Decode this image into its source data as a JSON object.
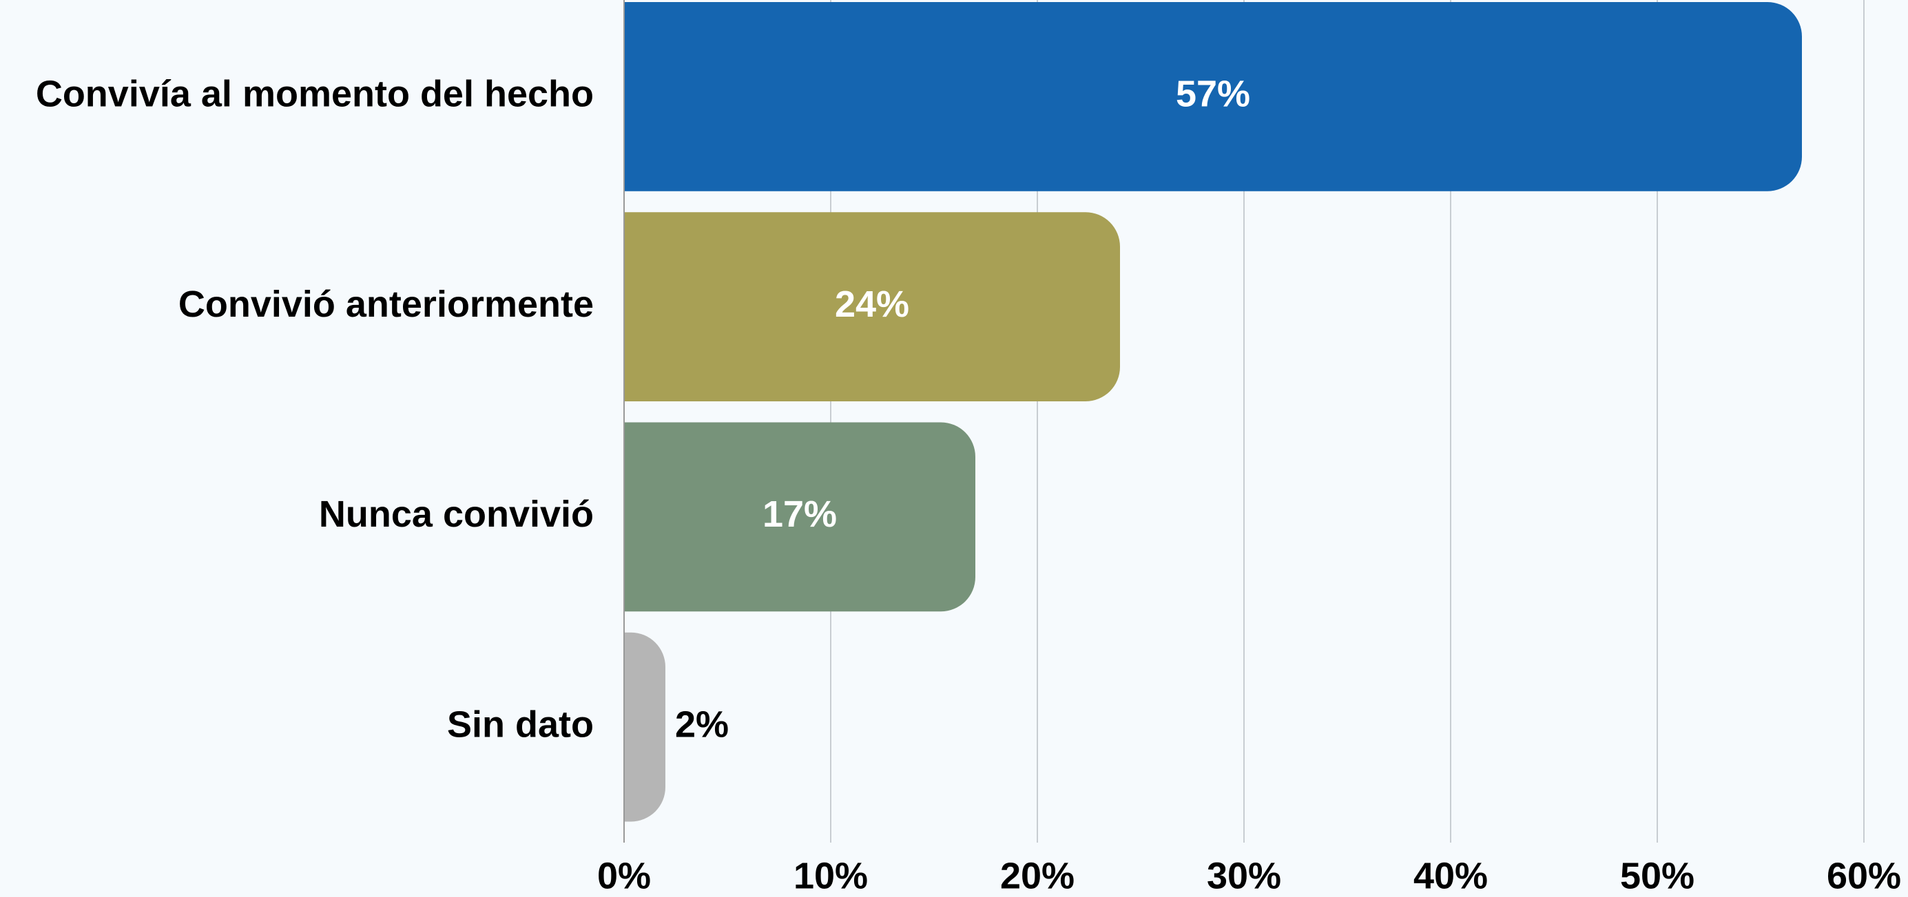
{
  "chart_data": {
    "type": "barh",
    "categories": [
      "Convivía al momento del hecho",
      "Convivió anteriormente",
      "Nunca convivió",
      "Sin dato"
    ],
    "values": [
      57,
      24,
      17,
      2
    ],
    "value_labels": [
      "57%",
      "24%",
      "17%",
      "2%"
    ],
    "colors": [
      "#1565b0",
      "#a8a055",
      "#77937a",
      "#b5b5b5"
    ],
    "xlim": [
      0,
      60
    ],
    "xticks": [
      {
        "value": 0,
        "label": "0%"
      },
      {
        "value": 10,
        "label": "10%"
      },
      {
        "value": 20,
        "label": "20%"
      },
      {
        "value": 30,
        "label": "30%"
      },
      {
        "value": 40,
        "label": "40%"
      },
      {
        "value": 50,
        "label": "50%"
      },
      {
        "value": 60,
        "label": "60%"
      }
    ],
    "grid": true
  }
}
